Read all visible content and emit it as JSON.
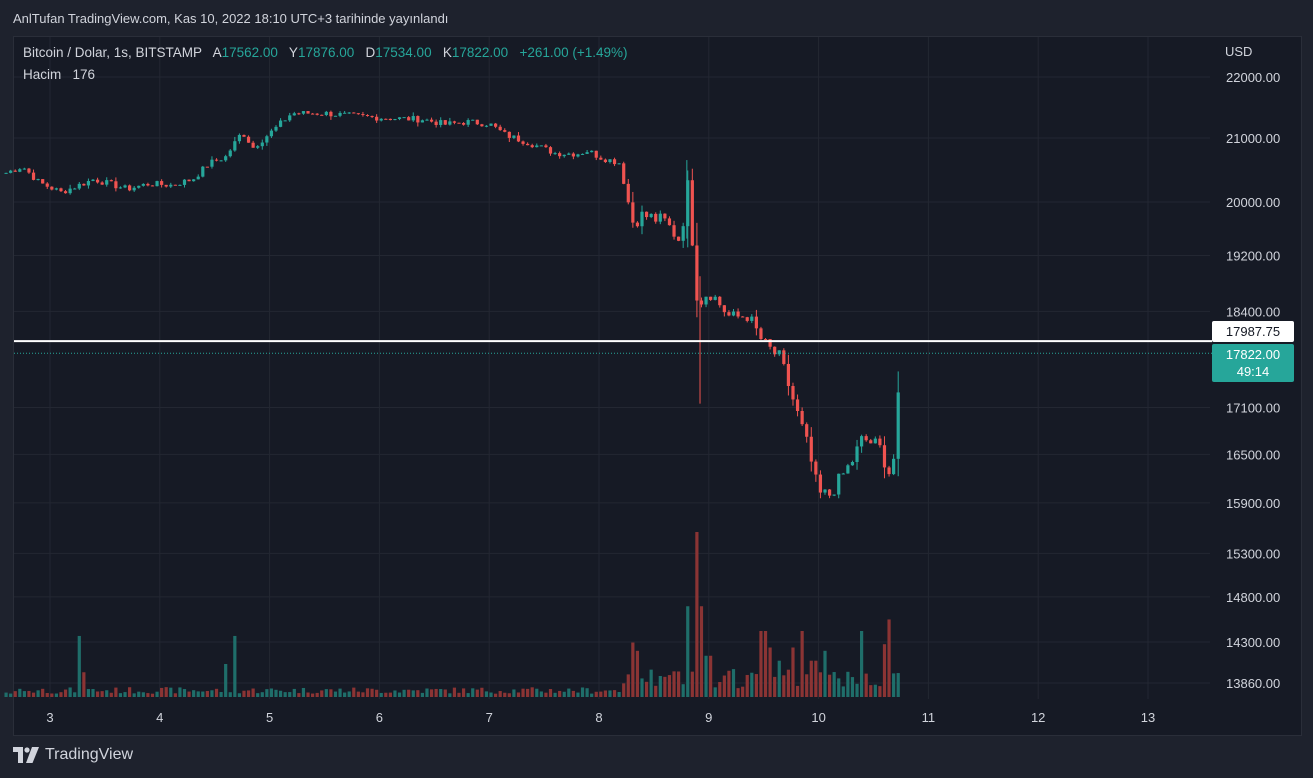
{
  "header": {
    "published": "AnlTufan TradingView.com, Kas 10, 2022 18:10 UTC+3 tarihinde yayınlandı"
  },
  "legend": {
    "symbol": "Bitcoin / Dolar, 1s, BITSTAMP",
    "open_label": "A",
    "open": "17562.00",
    "high_label": "Y",
    "high": "17876.00",
    "low_label": "D",
    "low": "17534.00",
    "close_label": "K",
    "close": "17822.00",
    "change": "+261.00 (+1.49%)",
    "volume_label": "Hacim",
    "volume": "176"
  },
  "price_axis": {
    "currency": "USD"
  },
  "markers": {
    "line_price": "17987.75",
    "last_price": "17822.00",
    "countdown": "49:14"
  },
  "footer": {
    "brand": "TradingView"
  },
  "colors": {
    "up": "#26a69a",
    "down": "#ef5350",
    "vol_up": "#1f6e6a",
    "vol_down": "#8b3434",
    "background": "#161a25",
    "grid": "#232732"
  },
  "chart_data": {
    "type": "candlestick",
    "x_ticks": [
      "3",
      "4",
      "5",
      "6",
      "7",
      "8",
      "9",
      "10",
      "11",
      "12",
      "13"
    ],
    "y_ticks": [
      22000,
      21000,
      20000,
      19200,
      18400,
      17100,
      16500,
      15900,
      15300,
      14800,
      14300,
      13860
    ],
    "y_tick_labels": [
      "22000.00",
      "21000.00",
      "20000.00",
      "19200.00",
      "18400.00",
      "17100.00",
      "16500.00",
      "15900.00",
      "15300.00",
      "14800.00",
      "14300.00",
      "13860.00"
    ],
    "log_scale": true,
    "horizontal_line": 17987.75,
    "last_price": 17822,
    "price_anchors": [
      [
        2.6,
        20450
      ],
      [
        2.75,
        20550
      ],
      [
        2.9,
        20300
      ],
      [
        3.1,
        20150
      ],
      [
        3.4,
        20350
      ],
      [
        3.7,
        20200
      ],
      [
        3.9,
        20280
      ],
      [
        4.1,
        20260
      ],
      [
        4.3,
        20350
      ],
      [
        4.45,
        20600
      ],
      [
        4.6,
        20700
      ],
      [
        4.75,
        21100
      ],
      [
        4.85,
        20850
      ],
      [
        5.05,
        21150
      ],
      [
        5.2,
        21400
      ],
      [
        5.5,
        21400
      ],
      [
        5.8,
        21350
      ],
      [
        6.1,
        21320
      ],
      [
        6.4,
        21300
      ],
      [
        6.6,
        21220
      ],
      [
        6.8,
        21260
      ],
      [
        7.0,
        21230
      ],
      [
        7.15,
        21050
      ],
      [
        7.4,
        20900
      ],
      [
        7.6,
        20760
      ],
      [
        7.8,
        20750
      ],
      [
        7.9,
        20800
      ],
      [
        8.0,
        20700
      ],
      [
        8.2,
        20600
      ],
      [
        8.3,
        19700
      ],
      [
        8.4,
        19800
      ],
      [
        8.6,
        19700
      ],
      [
        8.75,
        19400
      ],
      [
        8.8,
        20400
      ],
      [
        8.9,
        18500
      ],
      [
        9.0,
        18700
      ],
      [
        9.2,
        18300
      ],
      [
        9.35,
        18350
      ],
      [
        9.5,
        17950
      ],
      [
        9.65,
        17750
      ],
      [
        9.8,
        17050
      ],
      [
        9.9,
        16600
      ],
      [
        10.0,
        16000
      ],
      [
        10.1,
        16000
      ],
      [
        10.3,
        16400
      ],
      [
        10.4,
        16700
      ],
      [
        10.55,
        16600
      ],
      [
        10.65,
        16250
      ],
      [
        10.7,
        16550
      ],
      [
        10.75,
        17850
      ]
    ],
    "volume_spikes": [
      [
        8.9,
        1.0
      ],
      [
        8.8,
        0.55
      ],
      [
        8.95,
        0.55
      ],
      [
        4.7,
        0.37
      ],
      [
        3.25,
        0.37
      ],
      [
        8.3,
        0.33
      ],
      [
        9.5,
        0.4
      ],
      [
        9.85,
        0.4
      ],
      [
        10.4,
        0.4
      ],
      [
        10.65,
        0.47
      ],
      [
        10.6,
        0.32
      ],
      [
        9.75,
        0.3
      ],
      [
        9.0,
        0.25
      ],
      [
        4.6,
        0.2
      ],
      [
        3.3,
        0.15
      ],
      [
        8.35,
        0.28
      ],
      [
        9.55,
        0.3
      ],
      [
        10.05,
        0.28
      ],
      [
        9.95,
        0.22
      ],
      [
        9.65,
        0.22
      ]
    ]
  }
}
